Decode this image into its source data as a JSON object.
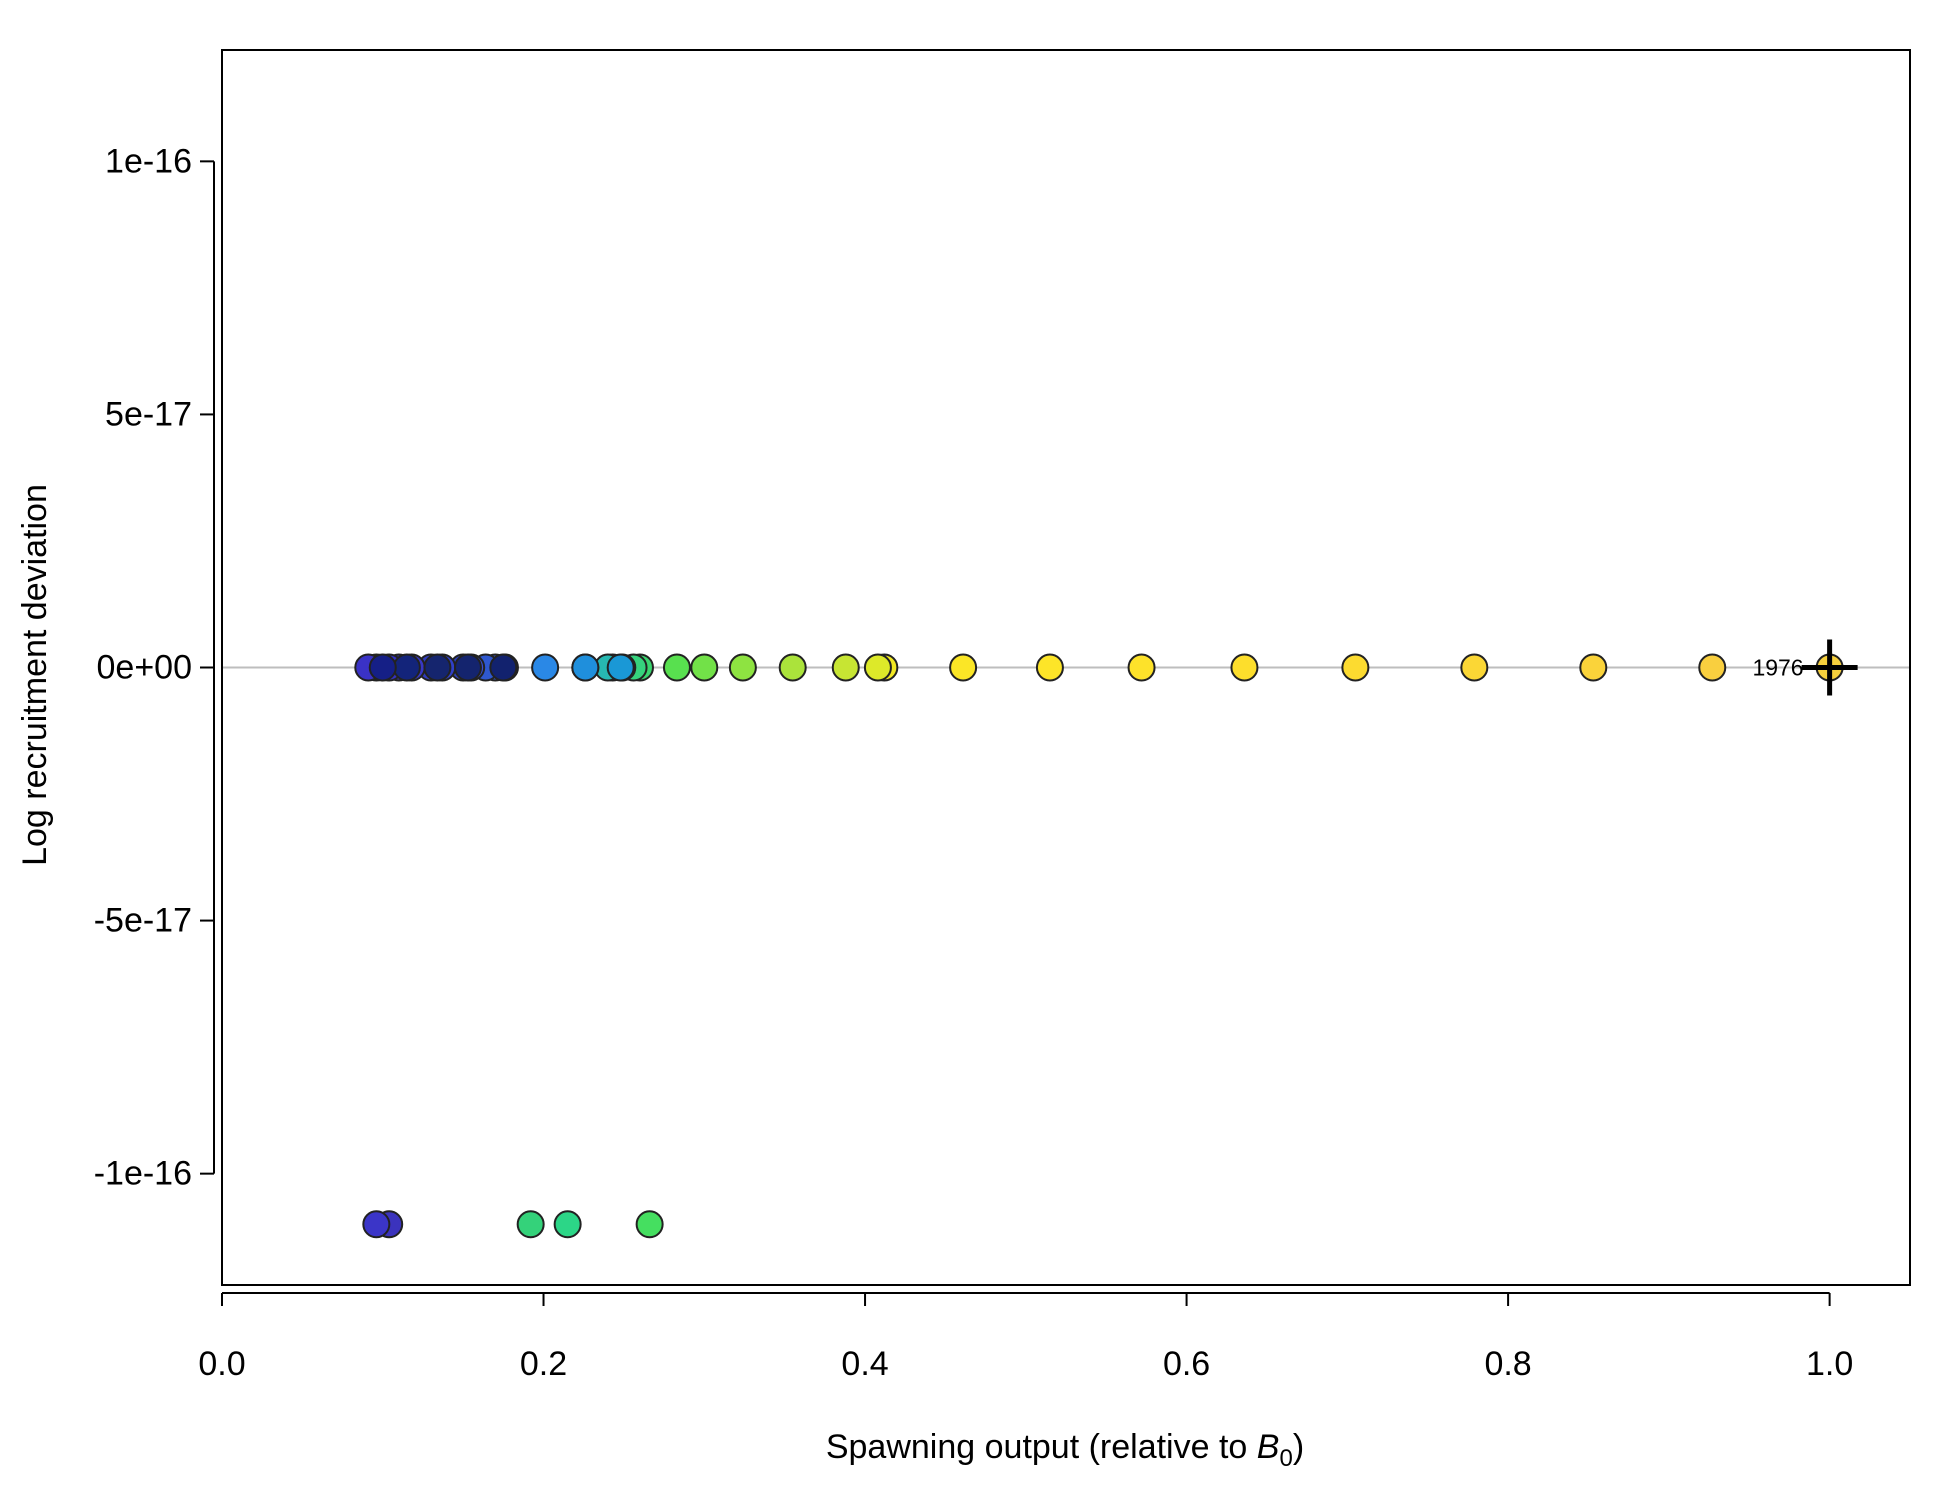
{
  "chart_data": {
    "type": "scatter",
    "title": "",
    "xlabel": "Spawning output (relative to ",
    "xlabel_symbol": "B",
    "xlabel_subscript": "0",
    "xlabel_suffix": ")",
    "ylabel": "Log recruitment deviation",
    "xlim": [
      0.0,
      1.05
    ],
    "ylim": [
      -1.22e-16,
      1.22e-16
    ],
    "x_ticks": [
      0.0,
      0.2,
      0.4,
      0.6,
      0.8,
      1.0
    ],
    "x_tick_labels": [
      "0.0",
      "0.2",
      "0.4",
      "0.6",
      "0.8",
      "1.0"
    ],
    "y_ticks": [
      1e-16,
      5e-17,
      0,
      -5e-17,
      -1e-16
    ],
    "y_tick_labels": [
      "1e-16",
      "5e-17",
      "0e+00",
      "-5e-17",
      "-1e-16"
    ],
    "reference_line_y": 0,
    "reference_line_color": "#bebebe",
    "grid": false,
    "start_point": {
      "x": 1.0,
      "y": 0,
      "label": "1976",
      "color": "#f7d13d"
    },
    "points": [
      {
        "x": 0.927,
        "y": 0,
        "color": "#f9cf3f"
      },
      {
        "x": 0.853,
        "y": 0,
        "color": "#fad33a"
      },
      {
        "x": 0.779,
        "y": 0,
        "color": "#fbd735"
      },
      {
        "x": 0.705,
        "y": 0,
        "color": "#fcdb30"
      },
      {
        "x": 0.636,
        "y": 0,
        "color": "#fdde2c"
      },
      {
        "x": 0.572,
        "y": 0,
        "color": "#fde22a"
      },
      {
        "x": 0.515,
        "y": 0,
        "color": "#fde528"
      },
      {
        "x": 0.461,
        "y": 0,
        "color": "#fbe626"
      },
      {
        "x": 0.412,
        "y": 0,
        "color": "#f2e823"
      },
      {
        "x": 0.408,
        "y": 0,
        "color": "#dde929"
      },
      {
        "x": 0.388,
        "y": 0,
        "color": "#c7e533"
      },
      {
        "x": 0.355,
        "y": 0,
        "color": "#abe33b"
      },
      {
        "x": 0.324,
        "y": 0,
        "color": "#8ee341"
      },
      {
        "x": 0.3,
        "y": 0,
        "color": "#72e148"
      },
      {
        "x": 0.283,
        "y": 0,
        "color": "#58e04f"
      },
      {
        "x": 0.266,
        "y": -1.1e-16,
        "color": "#45df60"
      },
      {
        "x": 0.26,
        "y": 0,
        "color": "#3bd66f"
      },
      {
        "x": 0.256,
        "y": 0,
        "color": "#36d37d"
      },
      {
        "x": 0.249,
        "y": 0,
        "color": "#2fcb90"
      },
      {
        "x": 0.243,
        "y": 0,
        "color": "#2ac1a2"
      },
      {
        "x": 0.24,
        "y": 0,
        "color": "#27b8b1"
      },
      {
        "x": 0.226,
        "y": 0,
        "color": "#24aec0"
      },
      {
        "x": 0.215,
        "y": -1.1e-16,
        "color": "#2cd687"
      },
      {
        "x": 0.192,
        "y": -1.1e-16,
        "color": "#34d27a"
      },
      {
        "x": 0.248,
        "y": 0,
        "color": "#1a98d6"
      },
      {
        "x": 0.226,
        "y": 0,
        "color": "#1f8fdc"
      },
      {
        "x": 0.201,
        "y": 0,
        "color": "#2a88e6"
      },
      {
        "x": 0.176,
        "y": 0,
        "color": "#2a70e2"
      },
      {
        "x": 0.17,
        "y": 0,
        "color": "#3a5ed6"
      },
      {
        "x": 0.164,
        "y": 0,
        "color": "#2f58cf"
      },
      {
        "x": 0.155,
        "y": 0,
        "color": "#3a4ed0"
      },
      {
        "x": 0.15,
        "y": 0,
        "color": "#2d40bf"
      },
      {
        "x": 0.137,
        "y": 0,
        "color": "#3040c8"
      },
      {
        "x": 0.13,
        "y": 0,
        "color": "#2f3bbd"
      },
      {
        "x": 0.118,
        "y": 0,
        "color": "#3838c4"
      },
      {
        "x": 0.11,
        "y": 0,
        "color": "#3a34c0"
      },
      {
        "x": 0.104,
        "y": -1.1e-16,
        "color": "#3b33bd"
      },
      {
        "x": 0.104,
        "y": 0,
        "color": "#3431c2"
      },
      {
        "x": 0.096,
        "y": 0,
        "color": "#3730c4"
      },
      {
        "x": 0.096,
        "y": -1.1e-16,
        "color": "#3b35c8"
      },
      {
        "x": 0.091,
        "y": 0,
        "color": "#3a32c6"
      },
      {
        "x": 0.175,
        "y": 0,
        "color": "#12226e"
      },
      {
        "x": 0.153,
        "y": 0,
        "color": "#14246e"
      },
      {
        "x": 0.134,
        "y": 0,
        "color": "#15256e"
      },
      {
        "x": 0.115,
        "y": 0,
        "color": "#13247a"
      },
      {
        "x": 0.1,
        "y": 0,
        "color": "#151f86"
      }
    ]
  }
}
